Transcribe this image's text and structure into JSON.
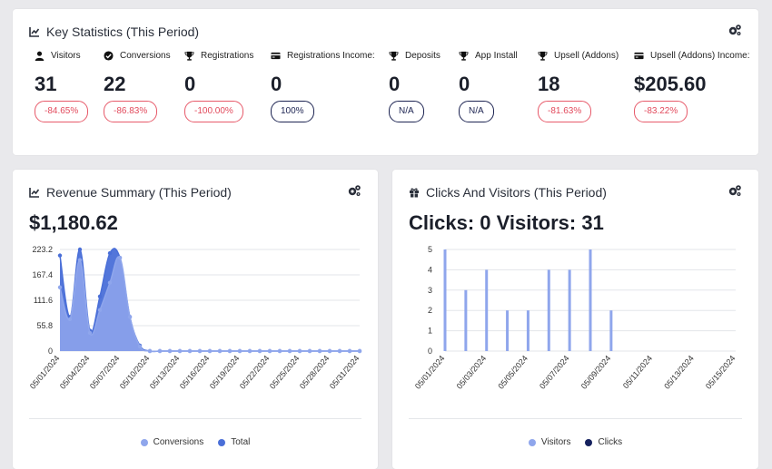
{
  "stats": {
    "title": "Key Statistics (This Period)",
    "items": [
      {
        "label": "Visitors",
        "value": "31",
        "change": "-84.65%",
        "tone": "neg",
        "icon": "user-icon"
      },
      {
        "label": "Conversions",
        "value": "22",
        "change": "-86.83%",
        "tone": "neg",
        "icon": "check-circle-icon"
      },
      {
        "label": "Registrations",
        "value": "0",
        "change": "-100.00%",
        "tone": "neg",
        "icon": "trophy-icon"
      },
      {
        "label": "Registrations Income:",
        "value": "0",
        "change": "100%",
        "tone": "neu",
        "icon": "credit-card-icon"
      },
      {
        "label": "Deposits",
        "value": "0",
        "change": "N/A",
        "tone": "neu",
        "icon": "trophy-icon"
      },
      {
        "label": "App Install",
        "value": "0",
        "change": "N/A",
        "tone": "neu",
        "icon": "trophy-icon"
      },
      {
        "label": "Upsell (Addons)",
        "value": "18",
        "change": "-81.63%",
        "tone": "neg",
        "icon": "trophy-icon"
      },
      {
        "label": "Upsell (Addons) Income:",
        "value": "$205.60",
        "change": "-83.22%",
        "tone": "neg",
        "icon": "credit-card-icon"
      }
    ]
  },
  "revenue": {
    "title": "Revenue Summary (This Period)",
    "total": "$1,180.62"
  },
  "clicks": {
    "title": "Clicks And Visitors (This Period)",
    "summary": "Clicks: 0 Visitors: 31"
  },
  "colors": {
    "conversions": "#8fa6ec",
    "total": "#4a6fd8",
    "visitors": "#8fa6ec",
    "clicks": "#15215e"
  },
  "chart_data": [
    {
      "type": "area",
      "x": [
        "05/01/2024",
        "05/02/2024",
        "05/03/2024",
        "05/04/2024",
        "05/05/2024",
        "05/06/2024",
        "05/07/2024",
        "05/08/2024",
        "05/09/2024",
        "05/10/2024",
        "05/11/2024",
        "05/12/2024",
        "05/13/2024",
        "05/14/2024",
        "05/15/2024",
        "05/16/2024",
        "05/17/2024",
        "05/18/2024",
        "05/19/2024",
        "05/20/2024",
        "05/21/2024",
        "05/22/2024",
        "05/23/2024",
        "05/24/2024",
        "05/25/2024",
        "05/26/2024",
        "05/27/2024",
        "05/28/2024",
        "05/29/2024",
        "05/30/2024",
        "05/31/2024"
      ],
      "x_tick_labels": [
        "05/01/2024",
        "05/04/2024",
        "05/07/2024",
        "05/10/2024",
        "05/13/2024",
        "05/16/2024",
        "05/19/2024",
        "05/22/2024",
        "05/25/2024",
        "05/28/2024",
        "05/31/2024"
      ],
      "series": [
        {
          "name": "Conversions",
          "values": [
            140,
            70,
            200,
            40,
            90,
            150,
            205,
            75,
            10,
            0,
            0,
            0,
            0,
            0,
            0,
            0,
            0,
            0,
            0,
            0,
            0,
            0,
            0,
            0,
            0,
            0,
            0,
            0,
            0,
            0,
            0
          ]
        },
        {
          "name": "Total",
          "values": [
            210,
            75,
            223.2,
            45,
            120,
            215,
            205,
            75,
            12,
            0,
            0,
            0,
            0,
            0,
            0,
            0,
            0,
            0,
            0,
            0,
            0,
            0,
            0,
            0,
            0,
            0,
            0,
            0,
            0,
            0,
            0
          ]
        }
      ],
      "y_ticks": [
        "0",
        "55.8",
        "111.6",
        "167.4",
        "223.2"
      ],
      "ylim": [
        0,
        223.2
      ],
      "legend": "bottom-center"
    },
    {
      "type": "bar",
      "x": [
        "05/01/2024",
        "05/02/2024",
        "05/03/2024",
        "05/04/2024",
        "05/05/2024",
        "05/06/2024",
        "05/07/2024",
        "05/08/2024",
        "05/09/2024",
        "05/10/2024",
        "05/11/2024",
        "05/12/2024",
        "05/13/2024",
        "05/14/2024",
        "05/15/2024"
      ],
      "x_tick_labels": [
        "05/01/2024",
        "05/03/2024",
        "05/05/2024",
        "05/07/2024",
        "05/09/2024",
        "05/11/2024",
        "05/13/2024",
        "05/15/2024"
      ],
      "series": [
        {
          "name": "Visitors",
          "values": [
            5,
            3,
            4,
            2,
            2,
            4,
            4,
            5,
            2,
            0,
            0,
            0,
            0,
            0,
            0
          ]
        },
        {
          "name": "Clicks",
          "values": [
            0,
            0,
            0,
            0,
            0,
            0,
            0,
            0,
            0,
            0,
            0,
            0,
            0,
            0,
            0
          ]
        }
      ],
      "y_ticks": [
        "0",
        "1",
        "2",
        "3",
        "4",
        "5"
      ],
      "ylim": [
        0,
        5
      ],
      "legend": "bottom-center"
    }
  ]
}
